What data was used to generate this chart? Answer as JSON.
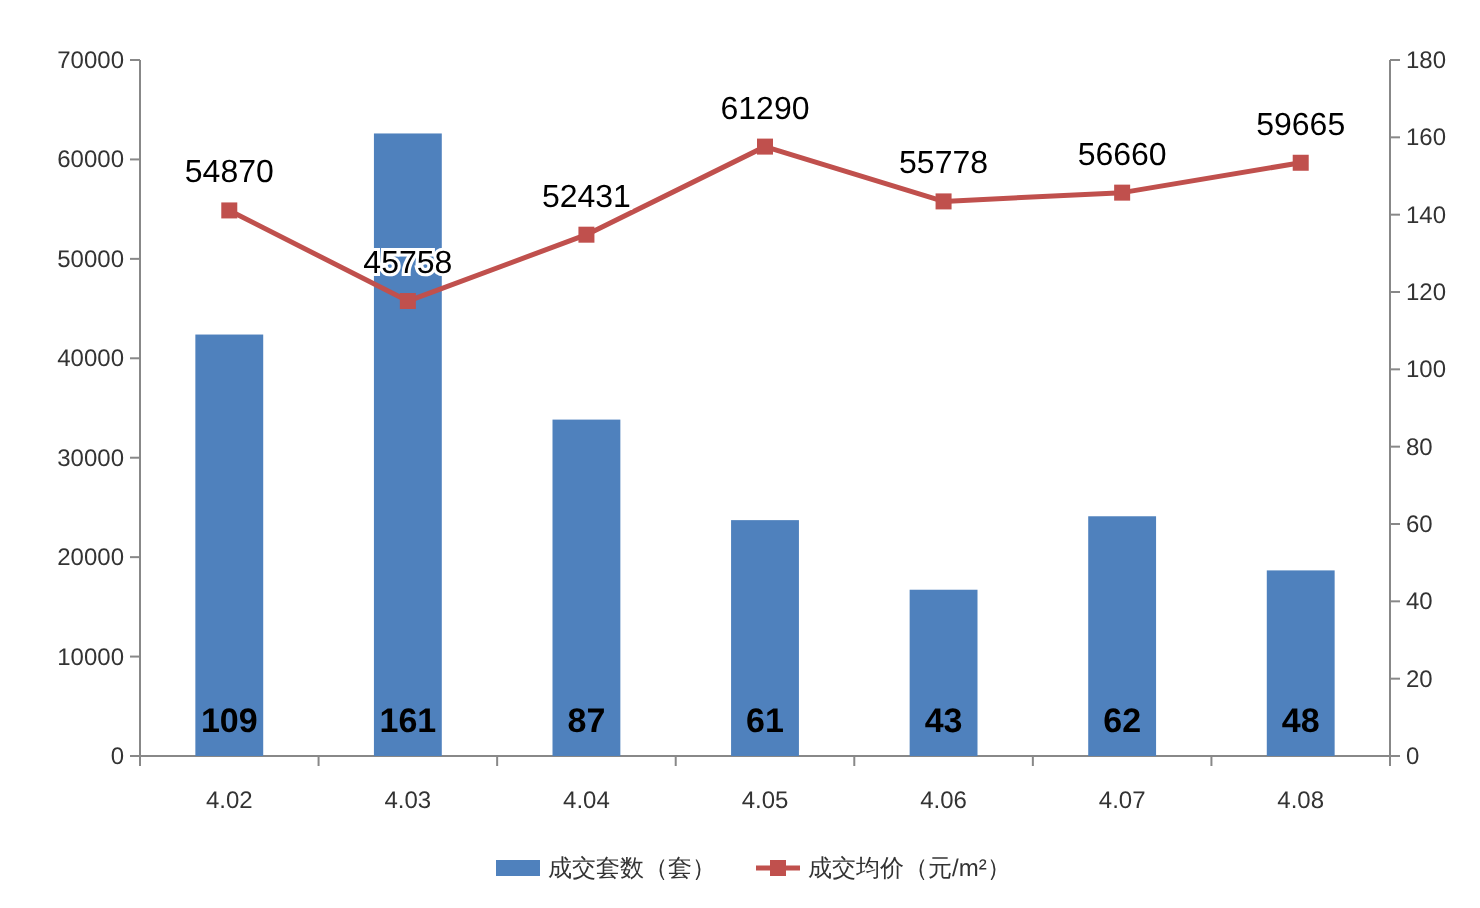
{
  "chart_data": {
    "type": "bar",
    "categories": [
      "4.02",
      "4.03",
      "4.04",
      "4.05",
      "4.06",
      "4.07",
      "4.08"
    ],
    "series": [
      {
        "name": "成交套数（套）",
        "color": "#4f81bd",
        "axis": "y2",
        "values": [
          109,
          161,
          87,
          61,
          43,
          62,
          48
        ]
      },
      {
        "name": "成交均价（元/m²）",
        "type": "line",
        "color": "#c0504d",
        "marker": "square",
        "values": [
          54870,
          45758,
          52431,
          61290,
          55778,
          56660,
          59665
        ]
      }
    ],
    "ylim": [
      0,
      70000
    ],
    "yticks": [
      0,
      10000,
      20000,
      30000,
      40000,
      50000,
      60000,
      70000
    ],
    "y2lim": [
      0,
      180
    ],
    "y2ticks": [
      0,
      20,
      40,
      60,
      80,
      100,
      120,
      140,
      160,
      180
    ],
    "data_labels": true,
    "legend": "bottom",
    "grid": false
  }
}
